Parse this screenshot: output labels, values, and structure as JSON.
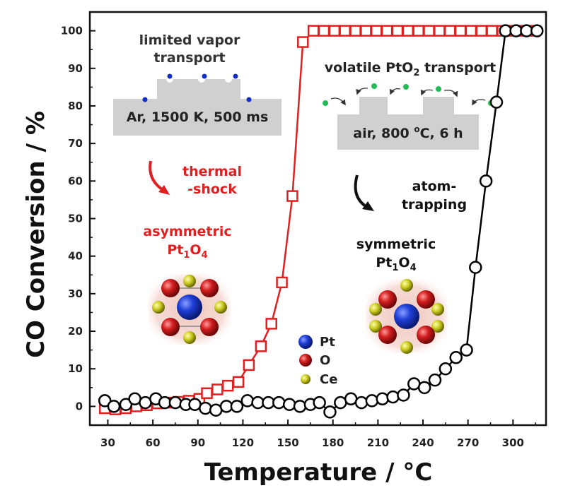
{
  "chart_data": {
    "type": "scatter",
    "xlabel": "Temperature / °C",
    "ylabel": "CO Conversion / %",
    "xlim": [
      18,
      322
    ],
    "ylim": [
      -5,
      105
    ],
    "xticks": [
      30,
      60,
      90,
      120,
      150,
      180,
      210,
      240,
      270,
      300
    ],
    "yticks": [
      0,
      10,
      20,
      30,
      40,
      50,
      60,
      70,
      80,
      90,
      100
    ],
    "grid": false,
    "legend": {
      "position": "lower-center",
      "entries": [
        "Pt",
        "O",
        "Ce"
      ]
    },
    "series": [
      {
        "marker": "square",
        "color": "#e02020",
        "x": [
          28,
          35,
          42,
          49,
          56,
          63,
          70,
          77,
          84,
          91,
          96,
          103,
          110,
          117,
          124,
          132,
          139,
          146,
          153,
          160,
          167,
          174,
          181,
          188,
          195,
          202,
          209,
          216,
          223,
          230,
          237,
          244,
          251,
          258,
          265,
          272,
          279,
          286,
          293,
          300,
          307,
          314
        ],
        "y": [
          -0.5,
          -0.8,
          -0.5,
          0,
          0.3,
          0.8,
          1,
          1.2,
          1.5,
          2,
          3.5,
          4.5,
          5.5,
          6.5,
          11,
          16,
          22,
          33,
          56,
          97,
          100,
          100,
          100,
          100,
          100,
          100,
          100,
          100,
          100,
          100,
          100,
          100,
          100,
          100,
          100,
          100,
          100,
          100,
          100,
          100,
          100,
          100
        ]
      },
      {
        "marker": "circle",
        "color": "#000000",
        "x": [
          28,
          34,
          42,
          48,
          55,
          62,
          68,
          75,
          82,
          88,
          95,
          102,
          109,
          116,
          123,
          130,
          137,
          144,
          151,
          158,
          165,
          171,
          178,
          185,
          192,
          199,
          206,
          213,
          220,
          227,
          234,
          241,
          248,
          255,
          262,
          269,
          275,
          282,
          289,
          295,
          302,
          309,
          316
        ],
        "y": [
          1.5,
          0,
          0.5,
          2,
          1,
          2,
          1,
          1,
          0.5,
          0.5,
          -0.5,
          -1,
          0,
          0,
          1.5,
          1,
          1,
          1,
          0.5,
          0,
          0.5,
          1,
          -1.5,
          1,
          2,
          1,
          1.5,
          2,
          2.5,
          3,
          6,
          5,
          7,
          10,
          13,
          15,
          37,
          60,
          81,
          100,
          100,
          100,
          100
        ]
      }
    ],
    "annotations": {
      "vapor_label_line1": "limited vapor",
      "vapor_label_line2": "transport",
      "vapor_box_text": "Ar, 1500 K, 500 ms",
      "volatile_label": "volatile PtO",
      "volatile_label_sub": "2",
      "volatile_label_rest": " transport",
      "air_box_text_main": "air, 800 ",
      "air_box_text_sup": "o",
      "air_box_text_rest": "C, 6 h",
      "thermal_line1": "thermal",
      "thermal_line2": "-shock",
      "atom_line1": "atom-",
      "atom_line2": "trapping",
      "asym_line1": "asymmetric",
      "asym_pt": "Pt",
      "asym_sub1": "1",
      "asym_o": "O",
      "asym_sub2": "4",
      "sym_line1": "symmetric",
      "sym_pt": "Pt",
      "sym_sub1": "1",
      "sym_o": "O",
      "sym_sub2": "4"
    },
    "colors": {
      "red": "#e02020",
      "black": "#000000",
      "pt_atom": "#1230c8",
      "o_atom": "#c81818",
      "ce_atom": "#c8c820",
      "gas_dot": "#22bb55",
      "box_gray": "#d0d0d0"
    }
  }
}
